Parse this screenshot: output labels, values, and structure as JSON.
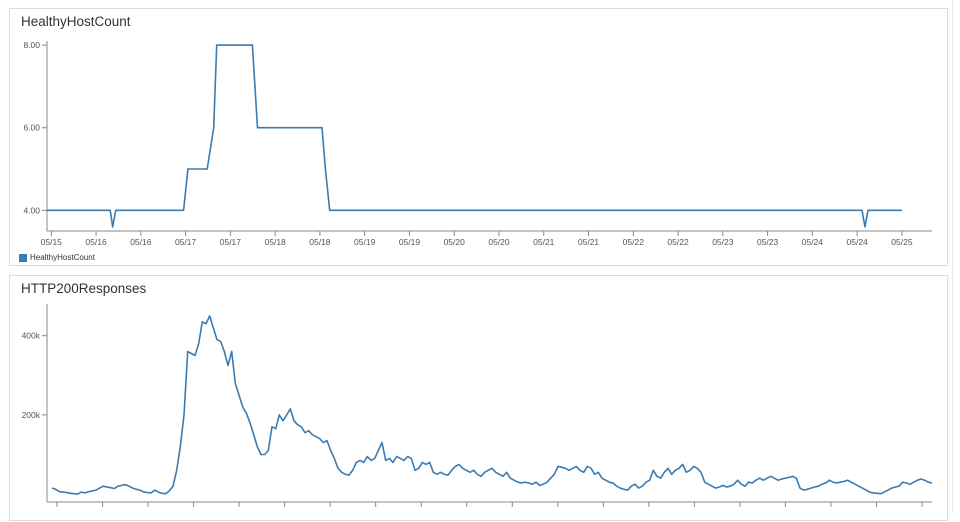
{
  "colors": {
    "series": "#3b7bb0",
    "axis": "#888888"
  },
  "chart_data": [
    {
      "type": "line",
      "title": "HealthyHostCount",
      "xlabel": "",
      "ylabel": "",
      "ylim": [
        3.5,
        8.1
      ],
      "yticks": [
        4,
        6,
        8
      ],
      "ytick_labels": [
        "4.00",
        "6.00",
        "8.00"
      ],
      "xlim": [
        0,
        20.6
      ],
      "xtick_labels": [
        "05/15",
        "05/16",
        "05/16",
        "05/17",
        "05/17",
        "05/18",
        "05/18",
        "05/19",
        "05/19",
        "05/20",
        "05/20",
        "05/21",
        "05/21",
        "05/22",
        "05/22",
        "05/23",
        "05/23",
        "05/24",
        "05/24",
        "05/25"
      ],
      "legend": {
        "entries": [
          "HealthyHostCount"
        ],
        "position": "bottom-left"
      },
      "grid": false,
      "series": [
        {
          "name": "HealthyHostCount",
          "points": [
            [
              0,
              4
            ],
            [
              1.47,
              4
            ],
            [
              1.53,
              3.6
            ],
            [
              1.6,
              4
            ],
            [
              3.18,
              4
            ],
            [
              3.28,
              5
            ],
            [
              3.73,
              5
            ],
            [
              3.88,
              6
            ],
            [
              3.95,
              8
            ],
            [
              4.78,
              8
            ],
            [
              4.9,
              6
            ],
            [
              6.4,
              6
            ],
            [
              6.48,
              5
            ],
            [
              6.58,
              4
            ],
            [
              18.97,
              4
            ],
            [
              19.04,
              3.6
            ],
            [
              19.11,
              4
            ],
            [
              19.9,
              4
            ]
          ]
        }
      ]
    },
    {
      "type": "line",
      "title": "HTTP200Responses",
      "xlabel": "",
      "ylabel": "",
      "ylim": [
        -20000,
        480000
      ],
      "yticks": [
        200000,
        400000
      ],
      "ytick_labels": [
        "200k",
        "400k"
      ],
      "grid": false,
      "series": [
        {
          "values": [
            15000,
            12000,
            6000,
            5000,
            4000,
            2000,
            1000,
            0,
            5000,
            3000,
            6000,
            8000,
            10000,
            15000,
            20000,
            18000,
            16000,
            14000,
            20000,
            22000,
            24000,
            20000,
            15000,
            12000,
            10000,
            5000,
            4000,
            3000,
            10000,
            5000,
            2000,
            1000,
            8000,
            20000,
            60000,
            120000,
            200000,
            360000,
            355000,
            350000,
            380000,
            435000,
            430000,
            450000,
            420000,
            390000,
            385000,
            360000,
            325000,
            360000,
            280000,
            250000,
            220000,
            205000,
            180000,
            150000,
            120000,
            100000,
            100000,
            110000,
            170000,
            165000,
            200000,
            185000,
            200000,
            215000,
            185000,
            175000,
            170000,
            155000,
            160000,
            150000,
            145000,
            140000,
            130000,
            135000,
            110000,
            90000,
            65000,
            55000,
            50000,
            48000,
            60000,
            80000,
            85000,
            80000,
            95000,
            85000,
            90000,
            110000,
            130000,
            85000,
            90000,
            80000,
            95000,
            90000,
            85000,
            95000,
            90000,
            60000,
            65000,
            80000,
            75000,
            80000,
            55000,
            50000,
            55000,
            50000,
            48000,
            60000,
            70000,
            75000,
            65000,
            60000,
            55000,
            60000,
            50000,
            45000,
            55000,
            60000,
            65000,
            55000,
            50000,
            45000,
            55000,
            40000,
            35000,
            30000,
            28000,
            30000,
            28000,
            25000,
            30000,
            22000,
            25000,
            30000,
            40000,
            50000,
            70000,
            68000,
            65000,
            60000,
            65000,
            70000,
            60000,
            55000,
            70000,
            65000,
            50000,
            55000,
            40000,
            35000,
            30000,
            28000,
            20000,
            15000,
            12000,
            10000,
            20000,
            25000,
            15000,
            20000,
            30000,
            35000,
            60000,
            45000,
            40000,
            55000,
            65000,
            50000,
            60000,
            65000,
            75000,
            55000,
            60000,
            70000,
            65000,
            55000,
            30000,
            25000,
            20000,
            15000,
            18000,
            22000,
            18000,
            20000,
            25000,
            35000,
            25000,
            20000,
            30000,
            28000,
            35000,
            40000,
            35000,
            40000,
            45000,
            40000,
            35000,
            38000,
            40000,
            42000,
            45000,
            40000,
            15000,
            10000,
            12000,
            15000,
            18000,
            20000,
            25000,
            28000,
            35000,
            30000,
            28000,
            30000,
            32000,
            35000,
            30000,
            25000,
            20000,
            15000,
            10000,
            5000,
            3000,
            2000,
            1000,
            5000,
            10000,
            15000,
            18000,
            20000,
            30000,
            28000,
            25000,
            30000,
            35000,
            38000,
            35000,
            30000,
            28000
          ]
        }
      ]
    }
  ]
}
